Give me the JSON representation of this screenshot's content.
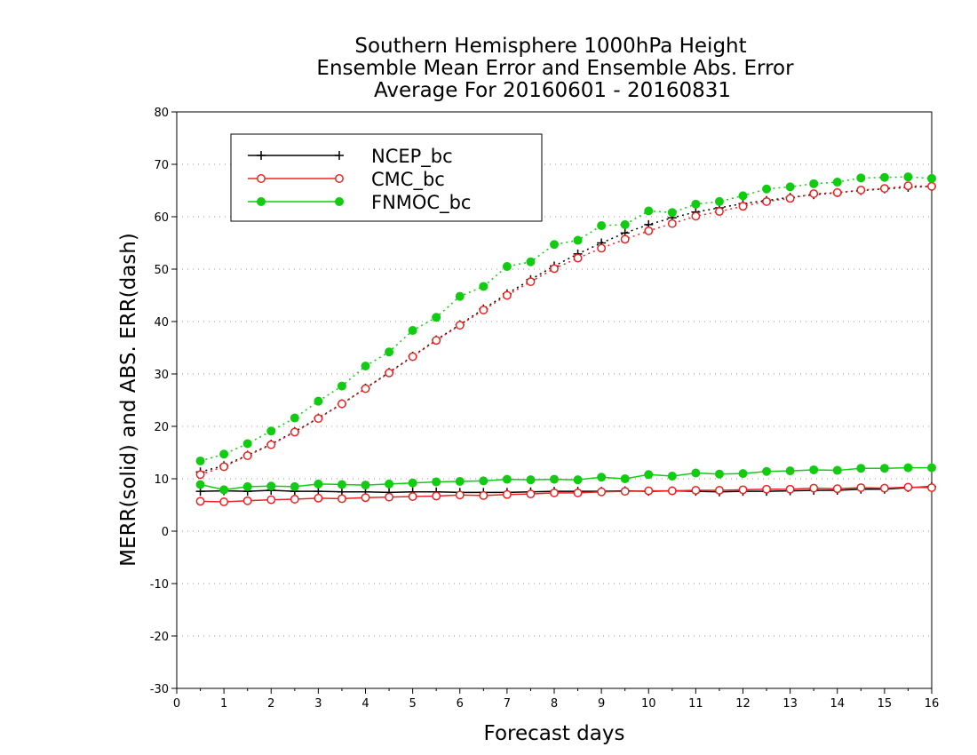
{
  "chart_data": {
    "type": "line",
    "title": [
      "Southern Hemisphere 1000hPa Height",
      "Ensemble Mean Error and Ensemble Abs. Error",
      "Average For 20160601 - 20160831"
    ],
    "xlabel": "Forecast days",
    "ylabel": "MERR(solid) and ABS. ERR(dash)",
    "xlim": [
      0,
      16
    ],
    "ylim": [
      -30,
      80
    ],
    "x_ticks": [
      0,
      1,
      2,
      3,
      4,
      5,
      6,
      7,
      8,
      9,
      10,
      11,
      12,
      13,
      14,
      15,
      16
    ],
    "y_ticks": [
      -30,
      -20,
      -10,
      0,
      10,
      20,
      30,
      40,
      50,
      60,
      70,
      80
    ],
    "grid": true,
    "legend_position": "top-left",
    "x": [
      0.5,
      1,
      1.5,
      2,
      2.5,
      3,
      3.5,
      4,
      4.5,
      5,
      5.5,
      6,
      6.5,
      7,
      7.5,
      8,
      8.5,
      9,
      9.5,
      10,
      10.5,
      11,
      11.5,
      12,
      12.5,
      13,
      13.5,
      14,
      14.5,
      15,
      15.5,
      16
    ],
    "series": [
      {
        "name": "NCEP_bc",
        "color": "#000000",
        "marker": "plus",
        "merr": [
          7.6,
          7.7,
          7.6,
          7.8,
          7.6,
          7.6,
          7.5,
          7.5,
          7.4,
          7.5,
          7.5,
          7.4,
          7.4,
          7.4,
          7.5,
          7.6,
          7.6,
          7.6,
          7.7,
          7.6,
          7.7,
          7.6,
          7.5,
          7.6,
          7.6,
          7.7,
          7.8,
          7.8,
          8.0,
          8.0,
          8.3,
          8.5
        ],
        "abs_err": [
          11.3,
          12.5,
          14.5,
          16.6,
          19.0,
          21.6,
          24.3,
          27.3,
          30.3,
          33.4,
          36.5,
          39.4,
          42.4,
          45.3,
          48.0,
          50.6,
          52.9,
          55.0,
          56.9,
          58.5,
          59.8,
          60.9,
          61.7,
          62.5,
          63.1,
          63.7,
          64.2,
          64.6,
          65.0,
          65.3,
          65.6,
          65.8
        ]
      },
      {
        "name": "CMC_bc",
        "color": "#ee2222",
        "marker": "open-circle",
        "merr": [
          5.7,
          5.6,
          5.8,
          6.0,
          6.1,
          6.3,
          6.2,
          6.4,
          6.5,
          6.6,
          6.7,
          6.9,
          6.8,
          7.0,
          7.1,
          7.3,
          7.3,
          7.5,
          7.6,
          7.7,
          7.7,
          7.8,
          7.8,
          7.9,
          8.0,
          8.0,
          8.2,
          8.1,
          8.3,
          8.2,
          8.4,
          8.3
        ],
        "abs_err": [
          10.8,
          12.3,
          14.4,
          16.5,
          18.9,
          21.5,
          24.3,
          27.2,
          30.2,
          33.3,
          36.4,
          39.3,
          42.2,
          45.0,
          47.6,
          50.1,
          52.1,
          54.0,
          55.7,
          57.3,
          58.7,
          60.1,
          61.0,
          62.0,
          62.9,
          63.5,
          64.4,
          64.6,
          65.1,
          65.4,
          65.9,
          65.8
        ]
      },
      {
        "name": "FNMOC_bc",
        "color": "#11cc11",
        "marker": "filled-circle",
        "merr": [
          8.9,
          7.9,
          8.5,
          8.6,
          8.5,
          9.0,
          8.9,
          8.8,
          9.0,
          9.2,
          9.4,
          9.5,
          9.6,
          9.9,
          9.8,
          9.9,
          9.8,
          10.3,
          10.0,
          10.8,
          10.5,
          11.1,
          10.9,
          11.0,
          11.4,
          11.5,
          11.7,
          11.6,
          12.0,
          12.0,
          12.1,
          12.1
        ],
        "abs_err": [
          13.4,
          14.7,
          16.7,
          19.1,
          21.6,
          24.8,
          27.7,
          31.5,
          34.2,
          38.3,
          40.8,
          44.8,
          46.7,
          50.5,
          51.4,
          54.7,
          55.5,
          58.3,
          58.5,
          61.1,
          60.8,
          62.4,
          62.9,
          64.0,
          65.3,
          65.7,
          66.3,
          66.6,
          67.4,
          67.5,
          67.6,
          67.3
        ]
      }
    ]
  }
}
